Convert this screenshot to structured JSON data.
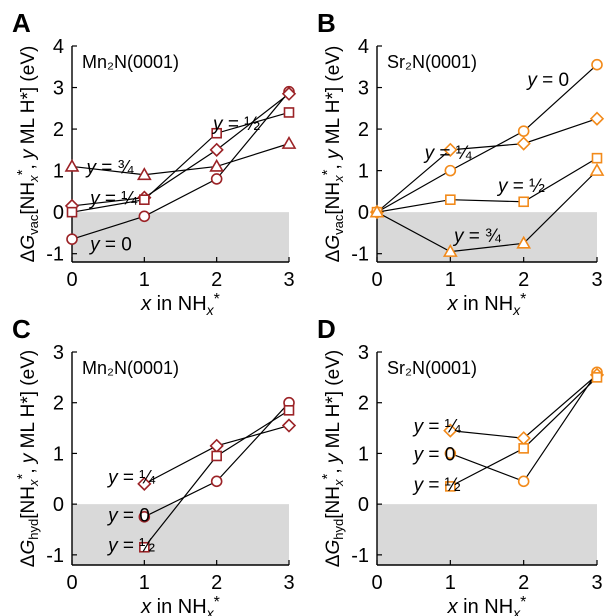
{
  "colors": {
    "mn": "#9b2226",
    "sr": "#f28a1a",
    "negative_band": "#d9d9d9",
    "axis": "#000000",
    "line": "#000000"
  },
  "chart_data": [
    {
      "panel_label": "A",
      "type": "line",
      "material": "Mn₂N(0001)",
      "ylabel": "ΔG_vac[NH_x*, y ML H*] (eV)",
      "xlabel": "x in NH_x*",
      "xlim": [
        0,
        3
      ],
      "ylim": [
        -1.2,
        4
      ],
      "xticks": [
        0,
        1,
        2,
        3
      ],
      "yticks": [
        -1,
        0,
        1,
        2,
        3,
        4
      ],
      "shade_below_zero": true,
      "color_key": "mn",
      "series": [
        {
          "name": "y = 0",
          "marker": "circle",
          "x": [
            0,
            1,
            2,
            3
          ],
          "values": [
            -0.65,
            -0.1,
            0.8,
            2.9
          ]
        },
        {
          "name": "y = ¼",
          "marker": "diamond",
          "x": [
            0,
            1,
            2,
            3
          ],
          "values": [
            0.15,
            0.35,
            1.5,
            2.85
          ]
        },
        {
          "name": "y = ½",
          "marker": "square",
          "x": [
            0,
            1,
            2,
            3
          ],
          "values": [
            0.0,
            0.3,
            1.9,
            2.4
          ]
        },
        {
          "name": "y = ¾",
          "marker": "triangle",
          "x": [
            0,
            1,
            2,
            3
          ],
          "values": [
            1.1,
            0.9,
            1.1,
            1.65
          ]
        }
      ]
    },
    {
      "panel_label": "B",
      "type": "line",
      "material": "Sr₂N(0001)",
      "ylabel": "ΔG_vac[NH_x*, y ML H*] (eV)",
      "xlabel": "x in NH_x*",
      "xlim": [
        0,
        3
      ],
      "ylim": [
        -1.2,
        4
      ],
      "xticks": [
        0,
        1,
        2,
        3
      ],
      "yticks": [
        -1,
        0,
        1,
        2,
        3,
        4
      ],
      "shade_below_zero": true,
      "color_key": "sr",
      "series": [
        {
          "name": "y = 0",
          "marker": "circle",
          "x": [
            0,
            1,
            2,
            3
          ],
          "values": [
            0.0,
            1.0,
            1.95,
            3.55
          ]
        },
        {
          "name": "y = ¼",
          "marker": "diamond",
          "x": [
            0,
            1,
            2,
            3
          ],
          "values": [
            0.0,
            1.5,
            1.65,
            2.25
          ]
        },
        {
          "name": "y = ½",
          "marker": "square",
          "x": [
            0,
            1,
            2,
            3
          ],
          "values": [
            0.0,
            0.3,
            0.25,
            1.3
          ]
        },
        {
          "name": "y = ¾",
          "marker": "triangle",
          "x": [
            0,
            1,
            2,
            3
          ],
          "values": [
            0.0,
            -0.95,
            -0.75,
            1.0
          ]
        }
      ]
    },
    {
      "panel_label": "C",
      "type": "line",
      "material": "Mn₂N(0001)",
      "ylabel": "ΔG_hyd[NH_x*, y ML H*] (eV)",
      "xlabel": "x in NH_x*",
      "xlim": [
        0,
        3
      ],
      "ylim": [
        -1.2,
        3
      ],
      "xticks": [
        0,
        1,
        2,
        3
      ],
      "yticks": [
        -1,
        0,
        1,
        2,
        3
      ],
      "shade_below_zero": true,
      "color_key": "mn",
      "series": [
        {
          "name": "y = 0",
          "marker": "circle",
          "x": [
            1,
            2,
            3
          ],
          "values": [
            -0.25,
            0.45,
            2.0
          ]
        },
        {
          "name": "y = ¼",
          "marker": "diamond",
          "x": [
            1,
            2,
            3
          ],
          "values": [
            0.4,
            1.15,
            1.55
          ]
        },
        {
          "name": "y = ½",
          "marker": "square",
          "x": [
            1,
            2,
            3
          ],
          "values": [
            -0.85,
            0.95,
            1.85
          ]
        }
      ]
    },
    {
      "panel_label": "D",
      "type": "line",
      "material": "Sr₂N(0001)",
      "ylabel": "ΔG_hyd[NH_x*, y ML H*] (eV)",
      "xlabel": "x in NH_x*",
      "xlim": [
        0,
        3
      ],
      "ylim": [
        -1.2,
        3
      ],
      "xticks": [
        0,
        1,
        2,
        3
      ],
      "yticks": [
        -1,
        0,
        1,
        2,
        3
      ],
      "shade_below_zero": true,
      "color_key": "sr",
      "series": [
        {
          "name": "y = 0",
          "marker": "circle",
          "x": [
            1,
            2,
            3
          ],
          "values": [
            1.0,
            0.45,
            2.6
          ]
        },
        {
          "name": "y = ¼",
          "marker": "diamond",
          "x": [
            1,
            2,
            3
          ],
          "values": [
            1.45,
            1.3,
            2.55
          ]
        },
        {
          "name": "y = ½",
          "marker": "square",
          "x": [
            1,
            2,
            3
          ],
          "values": [
            0.35,
            1.1,
            2.5
          ]
        }
      ]
    }
  ]
}
